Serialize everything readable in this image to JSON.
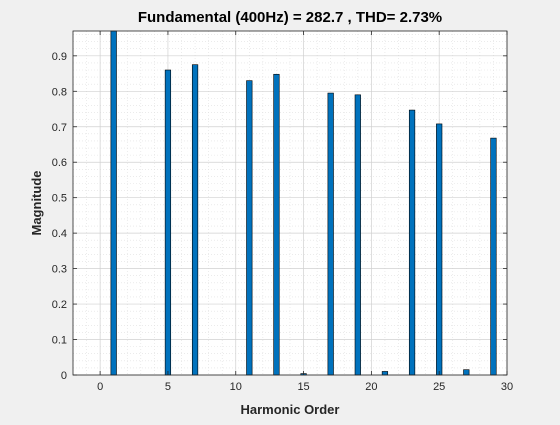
{
  "chart_data": {
    "type": "bar",
    "title": "Fundamental (400Hz) = 282.7 , THD= 2.73%",
    "xlabel": "Harmonic Order",
    "ylabel": "Magnitude",
    "xlim": [
      -2,
      30
    ],
    "ylim": [
      0,
      0.97
    ],
    "xticks": [
      0,
      5,
      10,
      15,
      20,
      25,
      30
    ],
    "yticks": [
      0,
      0.1,
      0.2,
      0.3,
      0.4,
      0.5,
      0.6,
      0.7,
      0.8,
      0.9
    ],
    "ytick_labels": [
      "0",
      "0.1",
      "0.2",
      "0.3",
      "0.4",
      "0.5",
      "0.6",
      "0.7",
      "0.8",
      "0.9"
    ],
    "grid": "major and minor",
    "x": [
      1,
      5,
      7,
      11,
      13,
      15,
      17,
      19,
      21,
      23,
      25,
      27,
      29
    ],
    "values": [
      1.0,
      0.86,
      0.875,
      0.83,
      0.848,
      0.004,
      0.795,
      0.79,
      0.01,
      0.747,
      0.708,
      0.015,
      0.668
    ],
    "bar_color": "#0072bd",
    "bar_edge_color": "#000000",
    "axes_color": "#262626",
    "grid_color": "#dfdfdf",
    "plot_background": "#ffffff",
    "figure_background": "#f0f0f0"
  }
}
